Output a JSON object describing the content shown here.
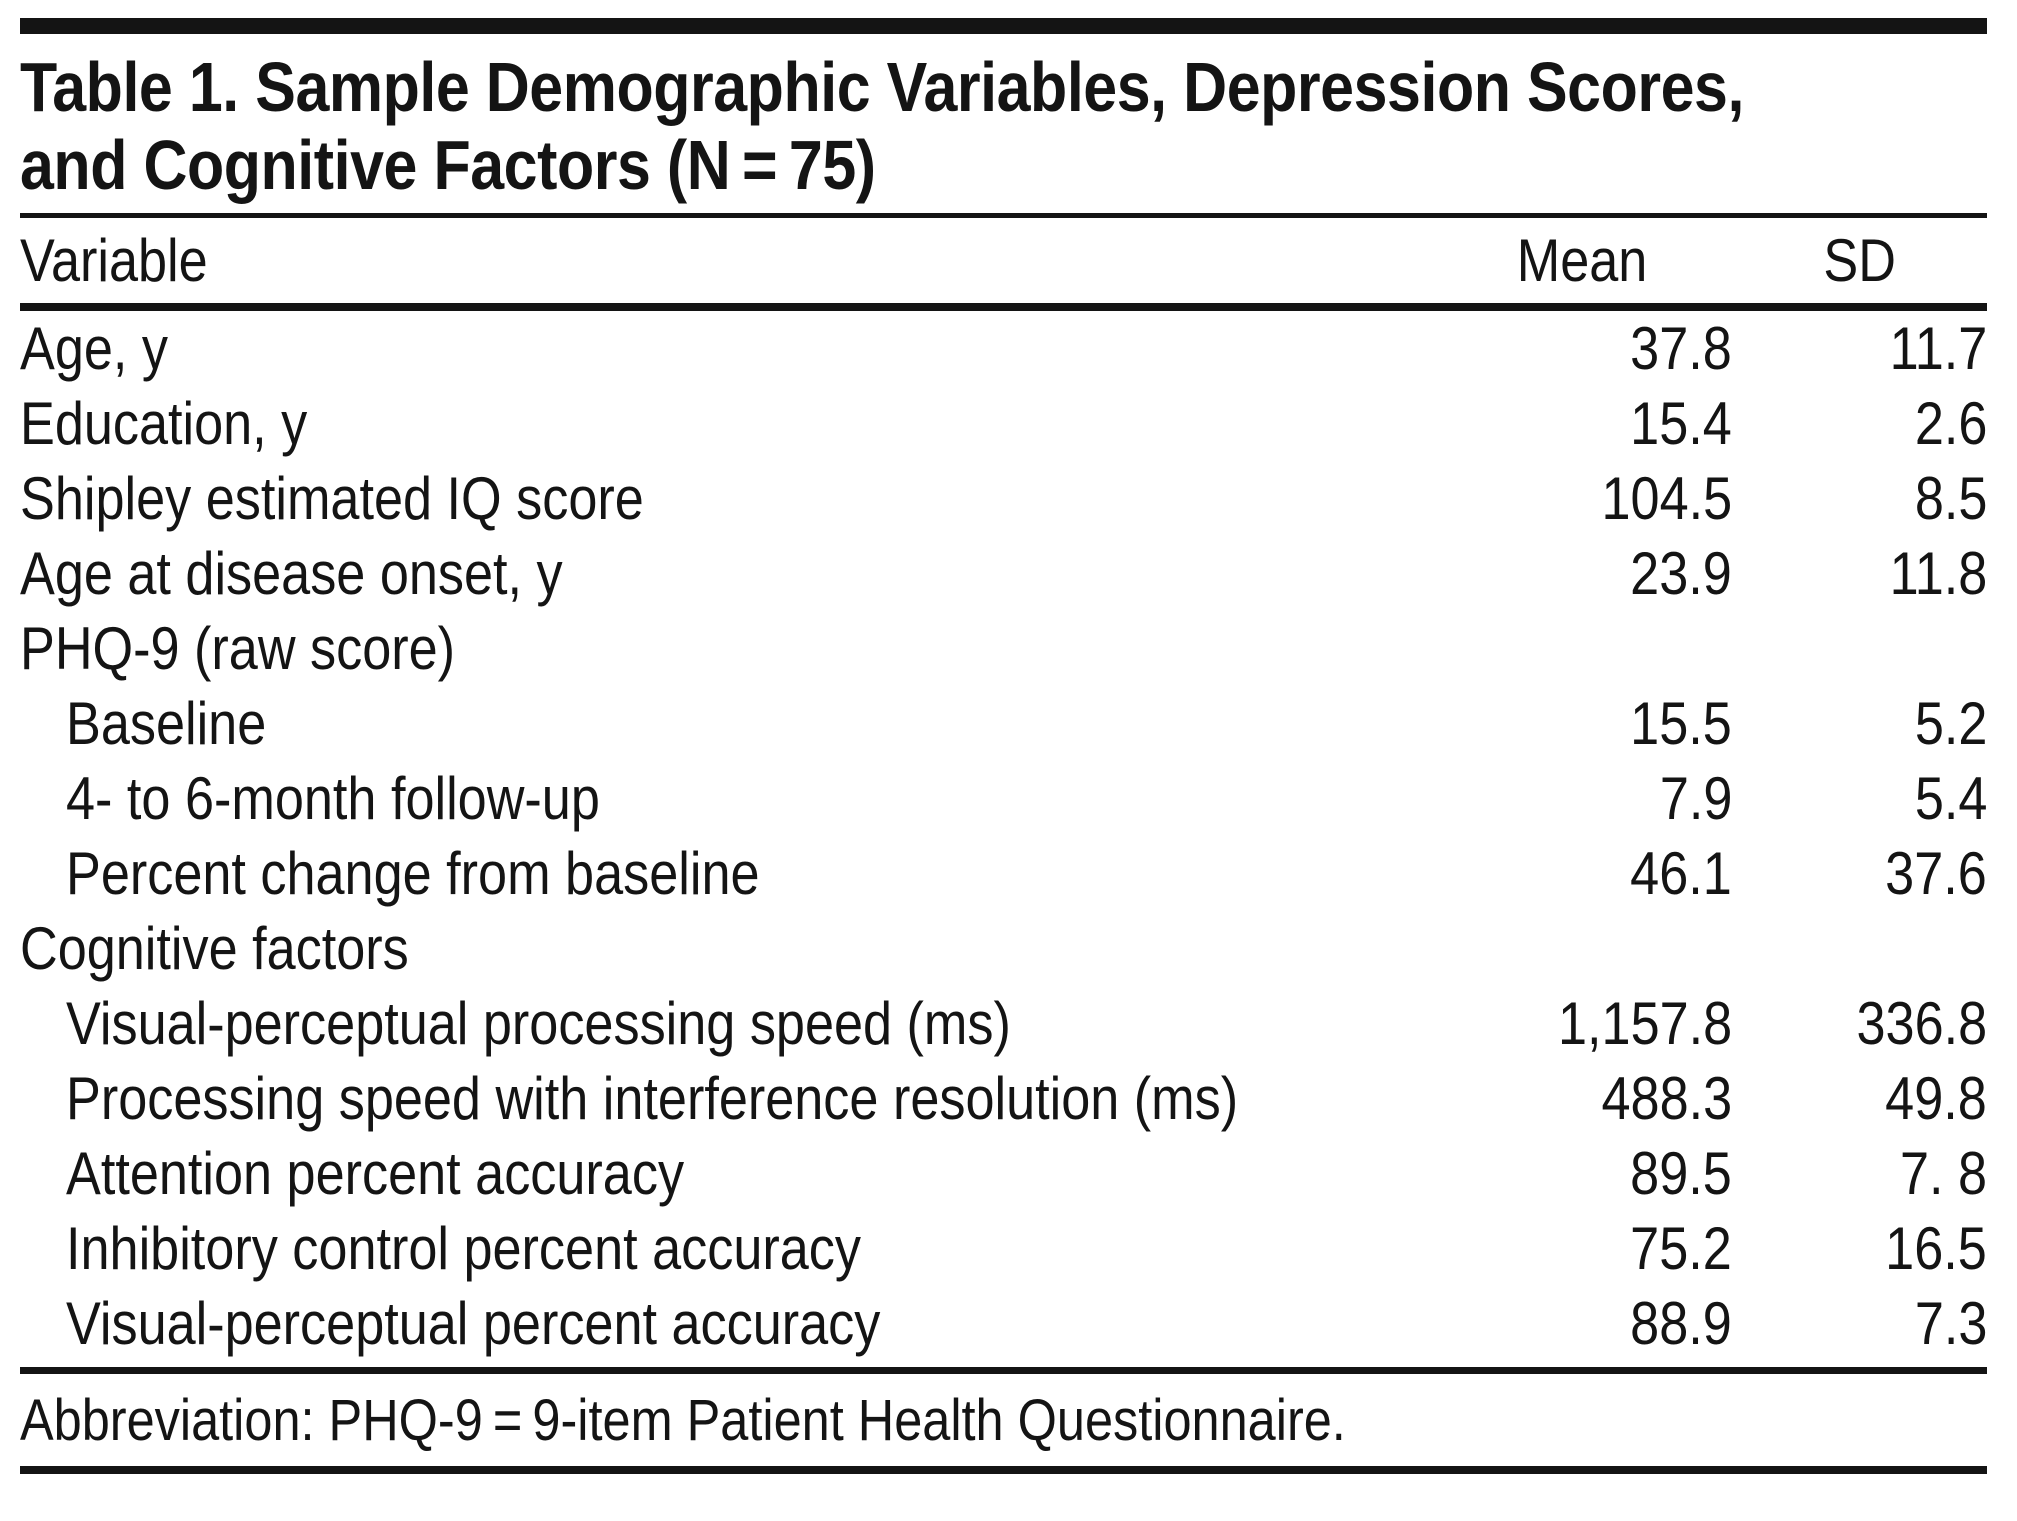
{
  "table": {
    "title_line1": "Table 1. Sample Demographic Variables, Depression Scores,",
    "title_line2": "and Cognitive Factors (N = 75)",
    "columns": [
      "Variable",
      "Mean",
      "SD"
    ],
    "rows": [
      {
        "label": "Age, y",
        "indent": false,
        "mean": "37.8",
        "sd": "11.7"
      },
      {
        "label": "Education, y",
        "indent": false,
        "mean": "15.4",
        "sd": "2.6"
      },
      {
        "label": "Shipley estimated IQ score",
        "indent": false,
        "mean": "104.5",
        "sd": "8.5"
      },
      {
        "label": "Age at disease onset, y",
        "indent": false,
        "mean": "23.9",
        "sd": "11.8"
      },
      {
        "label": "PHQ-9 (raw score)",
        "indent": false,
        "mean": "",
        "sd": ""
      },
      {
        "label": "Baseline",
        "indent": true,
        "mean": "15.5",
        "sd": "5.2"
      },
      {
        "label": "4- to 6-month follow-up",
        "indent": true,
        "mean": "7.9",
        "sd": "5.4"
      },
      {
        "label": "Percent change from baseline",
        "indent": true,
        "mean": "46.1",
        "sd": "37.6"
      },
      {
        "label": "Cognitive factors",
        "indent": false,
        "mean": "",
        "sd": ""
      },
      {
        "label": "Visual-perceptual processing speed (ms)",
        "indent": true,
        "mean": "1,157.8",
        "sd": "336.8"
      },
      {
        "label": "Processing speed with interference resolution (ms)",
        "indent": true,
        "mean": "488.3",
        "sd": "49.8"
      },
      {
        "label": "Attention percent accuracy",
        "indent": true,
        "mean": "89.5",
        "sd": "7. 8"
      },
      {
        "label": "Inhibitory control percent accuracy",
        "indent": true,
        "mean": "75.2",
        "sd": "16.5"
      },
      {
        "label": "Visual-perceptual percent accuracy",
        "indent": true,
        "mean": "88.9",
        "sd": "7.3"
      }
    ],
    "footnote": "Abbreviation: PHQ-9 = 9-item Patient Health Questionnaire."
  }
}
